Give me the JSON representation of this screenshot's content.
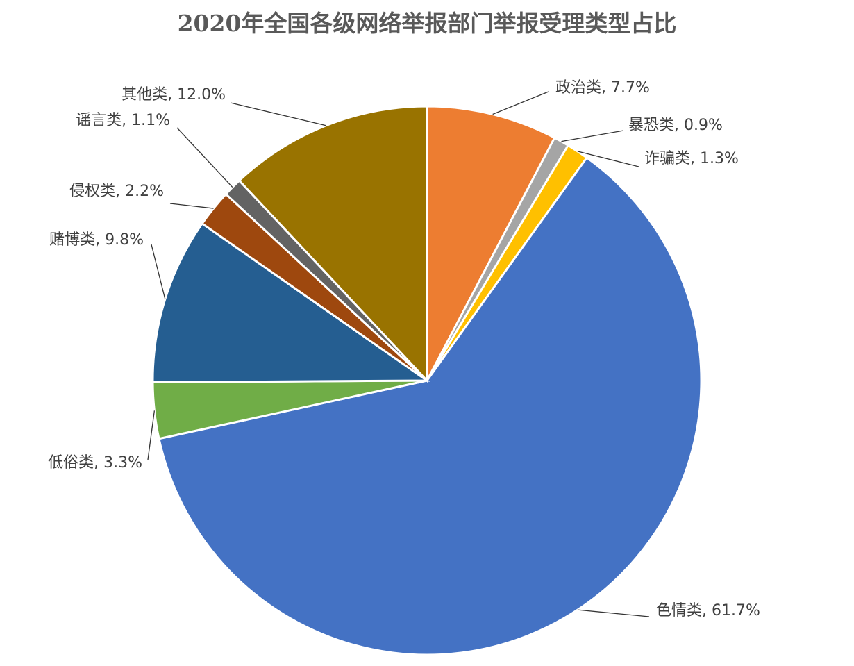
{
  "chart_data": {
    "type": "pie",
    "title": "2020年全国各级网络举报部门举报受理类型占比",
    "values": [
      7.7,
      0.9,
      1.3,
      61.7,
      3.3,
      9.8,
      2.2,
      1.1,
      12.0
    ],
    "value_labels": [
      "政治类, 7.7%",
      "暴恐类, 0.9%",
      "诈骗类, 1.3%",
      "色情类, 61.7%",
      "低俗类, 3.3%",
      "赌博类, 9.8%",
      "侵权类, 2.2%",
      "谣言类, 1.1%",
      "其他类, 12.0%"
    ],
    "colors": [
      "#ED7D31",
      "#A5A5A5",
      "#FFC000",
      "#4472C4",
      "#70AD47",
      "#255E91",
      "#9E480E",
      "#636363",
      "#997300"
    ]
  }
}
